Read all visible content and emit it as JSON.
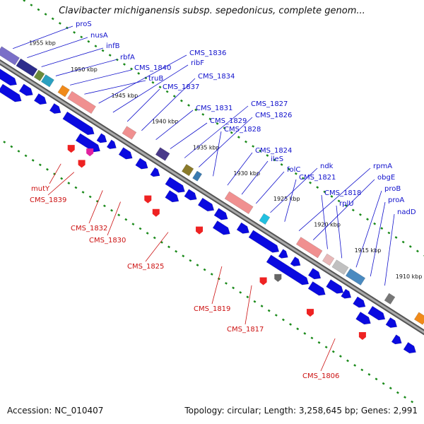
{
  "title": "Clavibacter michiganensis subsp. sepedonicus, complete genom...",
  "footer": {
    "accession": "Accession: NC_010407",
    "topology": "Topology: circular; Length: 3,258,645 bp; Genes: 2,991"
  },
  "colors": {
    "forward_label": "#1111cc",
    "reverse_label": "#cc1111",
    "cds": "#0a0ae0",
    "rna": "#ee2222",
    "backbone": "#888888",
    "dots": "#1a8a1a"
  },
  "scale_labels": [
    "1955 kbp",
    "1950 kbp",
    "1945 kbp",
    "1940 kbp",
    "1935 kbp",
    "1930 kbp",
    "1925 kbp",
    "1920 kbp",
    "1915 kbp",
    "1910 kbp"
  ],
  "forward_genes": [
    "proS",
    "nusA",
    "infB",
    "rbfA",
    "CMS_1840",
    "truB",
    "CMS_1836",
    "ribF",
    "CMS_1837",
    "CMS_1834",
    "CMS_1831",
    "CMS_1829",
    "CMS_1827",
    "CMS_1826",
    "CMS_1828",
    "CMS_1824",
    "ileS",
    "folC",
    "ndk",
    "CMS_1821",
    "rpmA",
    "obgE",
    "CMS_1818",
    "rplU",
    "proB",
    "proA",
    "nadD"
  ],
  "reverse_genes": [
    "mutY",
    "CMS_1839",
    "CMS_1832",
    "CMS_1830",
    "CMS_1825",
    "CMS_1819",
    "CMS_1817",
    "CMS_1806"
  ]
}
